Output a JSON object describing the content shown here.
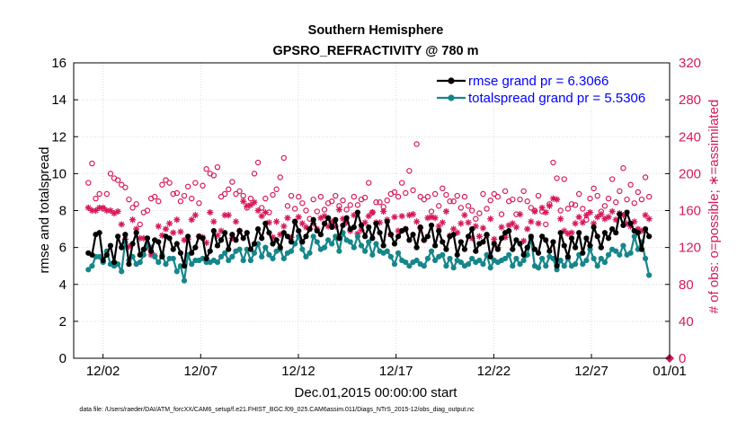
{
  "colors": {
    "rmse": "#000000",
    "totalspread": "#16868a",
    "obs": "#d6195b",
    "legend_text": "#0000ff",
    "grid": "#dcdcdc"
  },
  "chart_data": {
    "type": "line",
    "title": "Southern Hemisphere",
    "subtitle": "GPSRO_REFRACTIVITY @ 780 m",
    "xlabel": "Dec.01,2015 00:00:00 start",
    "ylabel": "rmse and totalspread",
    "ylabel_right": "# of obs: o=possible; ∗=assimilated",
    "footnote": "data file: /Users/raeder/DAI/ATM_forcXX/CAM6_setup/f.e21.FHIST_BGC.f09_025.CAM6assim.011/Diags_NTrS_2015-12/obs_diag_output.nc",
    "xlim": [
      0.5,
      31.0
    ],
    "ylim": [
      0,
      16
    ],
    "ylim_right": [
      0,
      320
    ],
    "x_ticks": [
      {
        "value": 2,
        "label": "12/02"
      },
      {
        "value": 7,
        "label": "12/07"
      },
      {
        "value": 12,
        "label": "12/12"
      },
      {
        "value": 17,
        "label": "12/17"
      },
      {
        "value": 22,
        "label": "12/22"
      },
      {
        "value": 27,
        "label": "12/27"
      },
      {
        "value": 31,
        "label": "01/01"
      }
    ],
    "y_ticks": [
      "0",
      "2",
      "4",
      "6",
      "8",
      "10",
      "12",
      "14",
      "16"
    ],
    "y_ticks_right": [
      "0",
      "40",
      "80",
      "120",
      "160",
      "200",
      "240",
      "280",
      "320"
    ],
    "legend_position": "top-right",
    "series": [
      {
        "name": "rmse",
        "legend": "rmse grand pr = 6.3066",
        "values": [
          5.7,
          5.6,
          6.7,
          6.8,
          5.3,
          5.6,
          6.1,
          5.2,
          6.6,
          6.0,
          6.7,
          5.1,
          6.2,
          6.8,
          5.6,
          5.9,
          6.5,
          5.8,
          6.4,
          6.3,
          5.5,
          6.6,
          6.5,
          5.9,
          6.2,
          5.7,
          5.0,
          6.6,
          5.7,
          6.0,
          6.6,
          6.5,
          5.4,
          5.8,
          6.9,
          6.1,
          6.4,
          6.8,
          5.9,
          6.7,
          6.4,
          6.9,
          6.5,
          6.8,
          5.9,
          6.2,
          7.0,
          6.5,
          7.3,
          6.8,
          6.2,
          6.4,
          6.0,
          6.8,
          6.6,
          6.3,
          7.4,
          6.9,
          6.3,
          6.6,
          7.0,
          7.5,
          6.9,
          6.7,
          7.3,
          7.6,
          7.1,
          7.5,
          6.5,
          7.2,
          7.6,
          7.0,
          7.1,
          7.9,
          7.2,
          6.6,
          7.1,
          6.5,
          7.3,
          6.8,
          6.1,
          7.4,
          6.7,
          6.2,
          6.6,
          6.9,
          7.0,
          6.4,
          6.7,
          6.0,
          7.1,
          6.4,
          6.6,
          7.2,
          6.1,
          6.9,
          6.3,
          5.9,
          6.6,
          6.7,
          5.6,
          6.3,
          5.9,
          6.6,
          7.0,
          5.8,
          6.2,
          6.3,
          6.7,
          5.5,
          6.2,
          5.9,
          6.5,
          6.8,
          6.9,
          5.9,
          6.4,
          6.2,
          5.6,
          6.0,
          6.6,
          5.9,
          5.7,
          6.6,
          6.4,
          5.8,
          6.3,
          5.0,
          6.8,
          6.1,
          5.5,
          6.5,
          6.0,
          6.8,
          5.7,
          6.5,
          6.1,
          7.1,
          6.6,
          6.0,
          6.8,
          6.5,
          7.0,
          6.8,
          7.8,
          7.2,
          7.9,
          7.3,
          6.9,
          6.8,
          5.9,
          7.0,
          6.6
        ]
      },
      {
        "name": "totalspread",
        "legend": "totalspread grand pr = 5.5306",
        "values": [
          4.8,
          5.0,
          5.5,
          5.5,
          5.2,
          5.8,
          5.1,
          5.0,
          5.1,
          4.7,
          6.3,
          5.3,
          5.5,
          5.1,
          5.2,
          5.6,
          6.2,
          6.0,
          5.5,
          5.2,
          5.6,
          5.1,
          5.4,
          5.4,
          4.7,
          5.0,
          4.2,
          5.6,
          5.1,
          5.3,
          5.3,
          5.4,
          5.2,
          5.2,
          5.3,
          5.2,
          5.5,
          5.7,
          5.3,
          5.5,
          5.8,
          5.9,
          5.3,
          5.9,
          5.3,
          5.7,
          6.2,
          5.5,
          6.0,
          5.6,
          5.4,
          5.8,
          5.9,
          5.4,
          5.7,
          5.8,
          6.2,
          6.6,
          5.9,
          5.5,
          5.7,
          6.6,
          6.3,
          5.9,
          6.0,
          6.4,
          6.2,
          6.6,
          5.8,
          6.8,
          6.4,
          6.3,
          6.0,
          6.6,
          6.1,
          5.8,
          6.3,
          5.6,
          6.2,
          5.8,
          5.7,
          5.8,
          5.5,
          5.1,
          5.7,
          5.3,
          5.2,
          5.0,
          5.2,
          5.3,
          5.1,
          5.0,
          5.4,
          5.8,
          5.3,
          5.5,
          5.6,
          5.0,
          5.4,
          4.9,
          5.3,
          5.2,
          5.0,
          5.1,
          5.4,
          5.2,
          5.3,
          5.1,
          5.6,
          4.9,
          5.3,
          5.2,
          5.3,
          5.4,
          5.6,
          5.0,
          5.4,
          5.1,
          5.3,
          5.6,
          6.5,
          5.0,
          4.9,
          5.4,
          5.0,
          5.5,
          5.4,
          4.8,
          5.3,
          5.0,
          5.4,
          5.0,
          5.1,
          5.6,
          5.1,
          5.3,
          5.9,
          5.4,
          5.0,
          5.4,
          5.2,
          5.6,
          5.9,
          5.8,
          5.6,
          6.1,
          5.6,
          5.7,
          6.6,
          5.9,
          6.3,
          5.4,
          4.5
        ]
      },
      {
        "name": "obs_possible",
        "axis": "right",
        "values": [
          190,
          211,
          173,
          178,
          162,
          178,
          200,
          195,
          193,
          188,
          185,
          172,
          163,
          167,
          145,
          158,
          160,
          173,
          175,
          170,
          188,
          193,
          190,
          178,
          179,
          170,
          176,
          186,
          173,
          190,
          168,
          187,
          205,
          200,
          198,
          207,
          175,
          178,
          183,
          191,
          178,
          181,
          176,
          163,
          173,
          200,
          212,
          163,
          173,
          158,
          177,
          183,
          196,
          217,
          165,
          176,
          162,
          175,
          168,
          160,
          151,
          172,
          159,
          175,
          161,
          168,
          170,
          176,
          165,
          171,
          161,
          166,
          175,
          166,
          172,
          174,
          190,
          158,
          169,
          169,
          164,
          171,
          178,
          180,
          175,
          190,
          179,
          203,
          182,
          232,
          175,
          172,
          175,
          159,
          178,
          165,
          184,
          177,
          170,
          170,
          176,
          163,
          175,
          165,
          160,
          151,
          157,
          178,
          162,
          171,
          178,
          175,
          156,
          181,
          170,
          172,
          156,
          172,
          181,
          170,
          163,
          160,
          176,
          159,
          145,
          167,
          212,
          195,
          160,
          194,
          162,
          167,
          166,
          178,
          162,
          150,
          173,
          184,
          176,
          159,
          165,
          173,
          194,
          169,
          181,
          206,
          172,
          188,
          168,
          180,
          172,
          196,
          175
        ]
      },
      {
        "name": "obs_assimilated",
        "axis": "right",
        "values": [
          163,
          160,
          160,
          163,
          163,
          160,
          160,
          157,
          159,
          145,
          129,
          121,
          150,
          140,
          130,
          130,
          120,
          112,
          111,
          143,
          133,
          140,
          146,
          136,
          150,
          137,
          128,
          129,
          150,
          155,
          132,
          131,
          125,
          158,
          148,
          133,
          138,
          155,
          155,
          130,
          148,
          138,
          170,
          165,
          166,
          169,
          160,
          154,
          158,
          147,
          131,
          148,
          134,
          143,
          152,
          131,
          148,
          153,
          146,
          142,
          140,
          146,
          140,
          152,
          154,
          143,
          148,
          143,
          161,
          151,
          147,
          138,
          155,
          135,
          139,
          147,
          154,
          158,
          147,
          147,
          159,
          150,
          134,
          153,
          138,
          154,
          140,
          155,
          156,
          148,
          141,
          128,
          152,
          153,
          152,
          143,
          147,
          159,
          133,
          140,
          136,
          146,
          155,
          147,
          130,
          143,
          132,
          141,
          133,
          151,
          129,
          120,
          142,
          131,
          144,
          146,
          142,
          156,
          127,
          140,
          148,
          159,
          146,
          163,
          158,
          165,
          173,
          172,
          151,
          138,
          135,
          136,
          146,
          153,
          147,
          155,
          158,
          146,
          153,
          156,
          151,
          153,
          159,
          150,
          157,
          155,
          146,
          143,
          148,
          140,
          138,
          155,
          151
        ]
      }
    ]
  }
}
